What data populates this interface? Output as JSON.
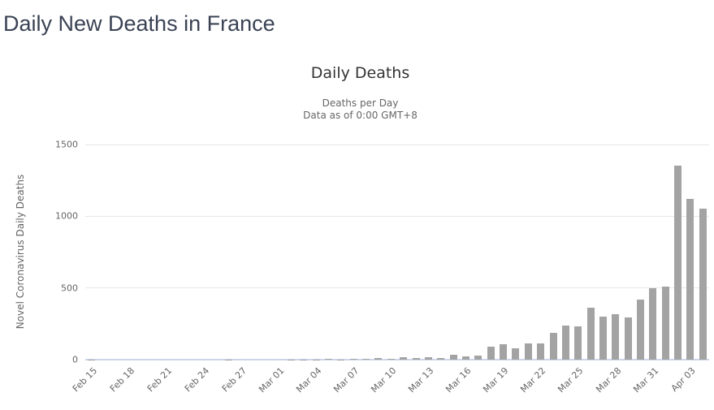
{
  "page": {
    "title": "Daily New Deaths in France"
  },
  "chart_data": {
    "type": "bar",
    "title": "Daily Deaths",
    "subtitle_lines": [
      "Deaths per Day",
      "Data as of 0:00 GMT+8"
    ],
    "xlabel": "",
    "ylabel": "Novel Coronavirus Daily Deaths",
    "ylim": [
      0,
      1500
    ],
    "yticks": [
      0,
      500,
      1000,
      1500
    ],
    "x_tick_every": 3,
    "grid": true,
    "legend": "none",
    "colors": {
      "bar": "#a3a3a3",
      "axis_line": "#ccd6eb",
      "gridline": "#e6e6e6",
      "tick_label": "#666666",
      "chart_title": "#333333",
      "subtitle": "#666666",
      "page_title": "#3a4254"
    },
    "categories": [
      "Feb 15",
      "Feb 16",
      "Feb 17",
      "Feb 18",
      "Feb 19",
      "Feb 20",
      "Feb 21",
      "Feb 22",
      "Feb 23",
      "Feb 24",
      "Feb 25",
      "Feb 26",
      "Feb 27",
      "Feb 28",
      "Feb 29",
      "Mar 01",
      "Mar 02",
      "Mar 03",
      "Mar 04",
      "Mar 05",
      "Mar 06",
      "Mar 07",
      "Mar 08",
      "Mar 09",
      "Mar 10",
      "Mar 11",
      "Mar 12",
      "Mar 13",
      "Mar 14",
      "Mar 15",
      "Mar 16",
      "Mar 17",
      "Mar 18",
      "Mar 19",
      "Mar 20",
      "Mar 21",
      "Mar 22",
      "Mar 23",
      "Mar 24",
      "Mar 25",
      "Mar 26",
      "Mar 27",
      "Mar 28",
      "Mar 29",
      "Mar 30",
      "Mar 31",
      "Apr 01",
      "Apr 02",
      "Apr 03",
      "Apr 04"
    ],
    "values": [
      1,
      0,
      0,
      0,
      0,
      0,
      0,
      0,
      0,
      0,
      0,
      1,
      0,
      0,
      0,
      0,
      1,
      1,
      2,
      3,
      2,
      5,
      3,
      11,
      3,
      15,
      13,
      18,
      12,
      36,
      21,
      27,
      89,
      108,
      78,
      112,
      112,
      186,
      240,
      231,
      365,
      299,
      319,
      292,
      418,
      499,
      509,
      1355,
      1120,
      1053
    ]
  }
}
